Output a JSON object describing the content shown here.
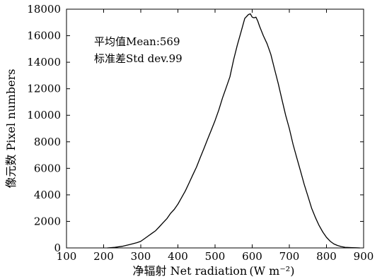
{
  "chart_data": {
    "type": "line",
    "xlabel": "净辐射 Net radiation (W m⁻²)",
    "ylabel": "像元数 Pixel numbers",
    "xlim": [
      100,
      900
    ],
    "ylim": [
      0,
      18000
    ],
    "x_ticks": [
      100,
      200,
      300,
      400,
      500,
      600,
      700,
      800,
      900
    ],
    "y_ticks": [
      0,
      2000,
      4000,
      6000,
      8000,
      10000,
      12000,
      14000,
      16000,
      18000
    ],
    "annotations": [
      "平均值Mean:569",
      "标准差Std dev.99"
    ],
    "grid": false,
    "series": [
      {
        "x": [
          210,
          230,
          250,
          270,
          290,
          300,
          310,
          320,
          330,
          340,
          350,
          360,
          370,
          380,
          390,
          400,
          410,
          420,
          430,
          440,
          450,
          460,
          470,
          480,
          490,
          500,
          510,
          520,
          530,
          540,
          550,
          560,
          570,
          580,
          590,
          595,
          600,
          605,
          610,
          615,
          620,
          630,
          640,
          650,
          660,
          670,
          680,
          690,
          700,
          710,
          720,
          730,
          740,
          750,
          760,
          770,
          780,
          790,
          800,
          810,
          820,
          830,
          840,
          850,
          860,
          870,
          880,
          890
        ],
        "y": [
          0,
          40,
          120,
          250,
          400,
          500,
          700,
          900,
          1100,
          1300,
          1600,
          1900,
          2200,
          2600,
          2900,
          3300,
          3800,
          4300,
          4900,
          5500,
          6100,
          6800,
          7500,
          8200,
          8900,
          9600,
          10400,
          11300,
          12100,
          12900,
          14200,
          15300,
          16300,
          17300,
          17600,
          17650,
          17400,
          17350,
          17400,
          17100,
          16700,
          16000,
          15400,
          14600,
          13500,
          12400,
          11200,
          10000,
          9000,
          7800,
          6800,
          5800,
          4800,
          3900,
          3000,
          2300,
          1700,
          1200,
          800,
          500,
          300,
          180,
          100,
          50,
          30,
          20,
          10,
          0
        ]
      }
    ]
  }
}
